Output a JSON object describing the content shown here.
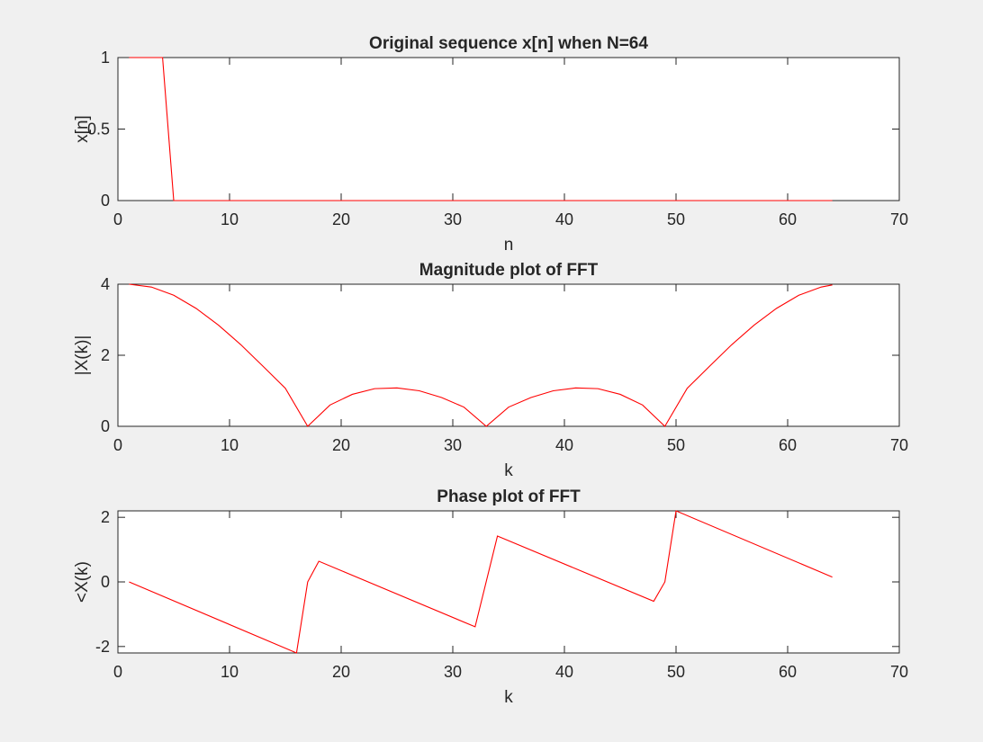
{
  "figure": {
    "background": "#f0f0f0",
    "axes_background": "#ffffff",
    "line_color": "#ff0000",
    "axis_color": "#262626"
  },
  "chart_data": [
    {
      "type": "line",
      "title": "Original sequence x[n] when N=64",
      "xlabel": "n",
      "ylabel": "x[n]",
      "xlim": [
        0,
        70
      ],
      "ylim": [
        0,
        1
      ],
      "xticks": [
        0,
        10,
        20,
        30,
        40,
        50,
        60,
        70
      ],
      "xtick_labels": [
        "0",
        "10",
        "20",
        "30",
        "40",
        "50",
        "60",
        "70"
      ],
      "yticks": [
        0,
        0.5,
        1
      ],
      "ytick_labels": [
        "0",
        "0.5",
        "1"
      ],
      "grid": false,
      "series": [
        {
          "x": [
            1,
            2,
            3,
            4,
            5,
            64
          ],
          "y": [
            1,
            1,
            1,
            1,
            0,
            0
          ]
        }
      ]
    },
    {
      "type": "line",
      "title": "Magnitude plot of FFT",
      "xlabel": "k",
      "ylabel": "|X(k)|",
      "xlim": [
        0,
        70
      ],
      "ylim": [
        0,
        4
      ],
      "xticks": [
        0,
        10,
        20,
        30,
        40,
        50,
        60,
        70
      ],
      "xtick_labels": [
        "0",
        "10",
        "20",
        "30",
        "40",
        "50",
        "60",
        "70"
      ],
      "yticks": [
        0,
        2,
        4
      ],
      "ytick_labels": [
        "0",
        "2",
        "4"
      ],
      "grid": false,
      "series": [
        {
          "x": [
            1,
            3,
            5,
            7,
            9,
            11,
            13,
            15,
            17,
            19,
            21,
            23,
            25,
            27,
            29,
            31,
            33,
            35,
            37,
            39,
            41,
            43,
            45,
            47,
            49,
            51,
            53,
            55,
            57,
            59,
            61,
            63,
            64
          ],
          "y": [
            4.0,
            3.92,
            3.69,
            3.32,
            2.85,
            2.3,
            1.69,
            1.07,
            0.0,
            0.6,
            0.9,
            1.06,
            1.08,
            1.0,
            0.81,
            0.54,
            0.0,
            0.54,
            0.81,
            1.0,
            1.08,
            1.06,
            0.9,
            0.6,
            0.0,
            1.07,
            1.69,
            2.3,
            2.85,
            3.32,
            3.69,
            3.92,
            3.98
          ]
        }
      ]
    },
    {
      "type": "line",
      "title": "Phase plot of FFT",
      "xlabel": "k",
      "ylabel": "<X(k)",
      "xlim": [
        0,
        70
      ],
      "ylim": [
        -2.2,
        2.2
      ],
      "xticks": [
        0,
        10,
        20,
        30,
        40,
        50,
        60,
        70
      ],
      "xtick_labels": [
        "0",
        "10",
        "20",
        "30",
        "40",
        "50",
        "60",
        "70"
      ],
      "yticks": [
        -2,
        0,
        2
      ],
      "ytick_labels": [
        "-2",
        "0",
        "2"
      ],
      "grid": false,
      "series": [
        {
          "x": [
            1,
            16,
            17,
            18,
            32,
            34,
            48,
            49,
            50,
            64
          ],
          "y": [
            0.0,
            -2.2,
            0.0,
            0.64,
            -1.39,
            1.42,
            -0.6,
            0.0,
            2.2,
            0.15
          ]
        }
      ]
    }
  ]
}
